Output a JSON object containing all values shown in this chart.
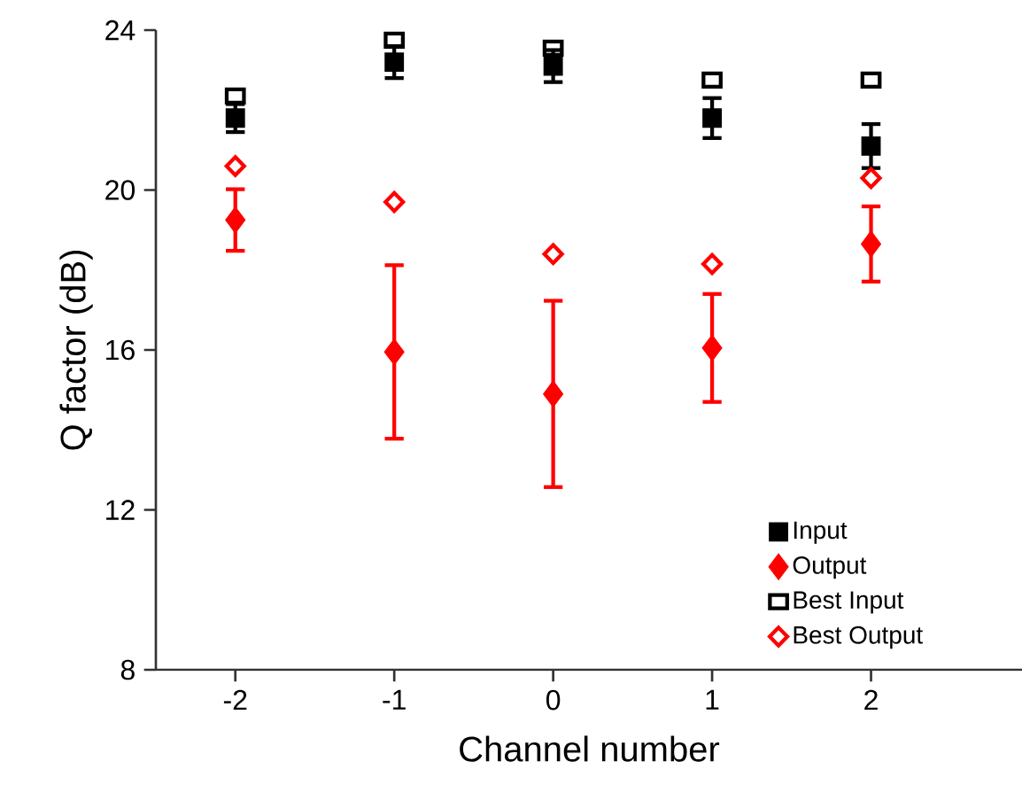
{
  "chart_data": {
    "type": "scatter",
    "xlabel": "Channel number",
    "ylabel": "Q factor (dB)",
    "x": [
      -2,
      -1,
      0,
      1,
      2
    ],
    "xlim": [
      -2.5,
      2.95
    ],
    "xticks": [
      -2,
      -1,
      0,
      1,
      2
    ],
    "ylim": [
      8,
      24
    ],
    "yticks": [
      8,
      12,
      16,
      20,
      24
    ],
    "legend": "bottom right",
    "grid": false,
    "series": [
      {
        "name": "Input",
        "color": "#000000",
        "marker": "square",
        "values": [
          21.8,
          23.2,
          23.1,
          21.8,
          21.1
        ],
        "errors": [
          0.35,
          0.4,
          0.4,
          0.5,
          0.55
        ]
      },
      {
        "name": "Output",
        "color": "#ff0000",
        "marker": "diamond",
        "values": [
          19.25,
          15.95,
          14.9,
          16.05,
          18.65
        ],
        "errors": [
          0.77,
          2.17,
          2.33,
          1.35,
          0.94
        ]
      },
      {
        "name": "Best Input",
        "color": "#000000",
        "marker": "square",
        "values": [
          22.35,
          23.75,
          23.55,
          22.75,
          22.75
        ]
      },
      {
        "name": "Best Output",
        "color": "#ff0000",
        "marker": "diamond",
        "values": [
          20.6,
          19.7,
          18.4,
          18.15,
          20.3
        ]
      }
    ]
  }
}
